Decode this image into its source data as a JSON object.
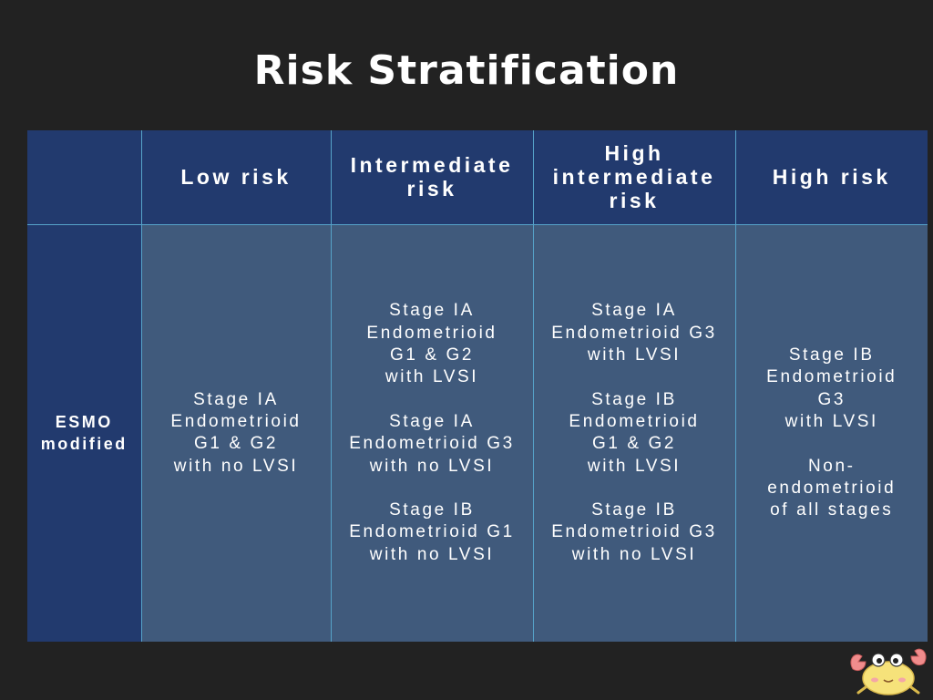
{
  "title": "Risk Stratification",
  "table": {
    "headers": [
      "",
      "Low risk",
      "Intermediate risk",
      "High intermediate risk",
      "High risk"
    ],
    "header_lines": [
      [],
      [
        "Low risk"
      ],
      [
        "Intermediate",
        "risk"
      ],
      [
        "High",
        "intermediate",
        "risk"
      ],
      [
        "High risk"
      ]
    ],
    "row_label_lines": [
      "ESMO",
      "modified"
    ],
    "cells": [
      [
        "Stage IA",
        "Endometrioid",
        "G1 & G2",
        "with no LVSI"
      ],
      [
        "Stage IA",
        "Endometrioid",
        "G1 & G2",
        "with LVSI",
        "",
        "Stage IA",
        "Endometrioid G3",
        "with no LVSI",
        "",
        "Stage IB",
        "Endometrioid G1",
        "with no LVSI"
      ],
      [
        "Stage IA",
        "Endometrioid G3",
        "with LVSI",
        "",
        "Stage IB",
        "Endometrioid",
        "G1 & G2",
        "with LVSI",
        "",
        "Stage IB",
        "Endometrioid G3",
        "with no LVSI"
      ],
      [
        "Stage IB",
        "Endometrioid",
        "G3",
        "with LVSI",
        "",
        "Non-",
        "endometrioid",
        "of all stages"
      ]
    ]
  },
  "colors": {
    "background": "#222222",
    "header_fill": "#223a6e",
    "body_fill": "#405a7c",
    "grid": "#56a3c9",
    "text": "#ffffff"
  },
  "icons": {
    "corner": "crab-mascot-icon"
  }
}
